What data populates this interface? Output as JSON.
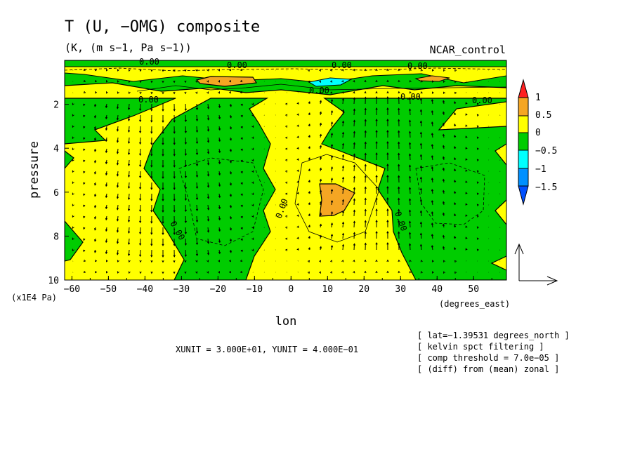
{
  "chart_data": {
    "type": "contour",
    "title": "T (U, −OMG) composite",
    "units": "(K, (m s−1, Pa s−1))",
    "experiment": "NCAR_control",
    "xlabel": "lon",
    "x_units": "(degrees_east)",
    "ylabel": "pressure",
    "y_units": "(x1E4 Pa)",
    "x_ticks": [
      "−60",
      "−50",
      "−40",
      "−30",
      "−20",
      "−10",
      "0",
      "10",
      "20",
      "30",
      "40",
      "50"
    ],
    "y_ticks": [
      "2",
      "4",
      "6",
      "8",
      "10"
    ],
    "xlim": [
      -62,
      59
    ],
    "ylim": [
      10,
      0
    ],
    "colorbar": {
      "levels": [
        "1",
        "0.5",
        "0",
        "−0.5",
        "−1",
        "−1.5"
      ],
      "colors": [
        "#ff2020",
        "#f5a623",
        "#ffff00",
        "#00cc00",
        "#00ffff",
        "#0090ff",
        "#0050ff"
      ]
    },
    "contour_labels": [
      "0.00"
    ],
    "vector_reference": "XUNIT = 3.000E+01, YUNIT = 4.000E−01",
    "notes": [
      "[ lat=−1.39531 degrees_north ]",
      "[ kelvin spct filtering ]",
      "[ comp threshold = 7.0e−05 ]",
      "[ (diff) from (mean) zonal ]"
    ],
    "regions": [
      {
        "name": "warm anomaly (>0.5)",
        "lon": [
          7,
          15
        ],
        "pressure": [
          5.8,
          7.2
        ],
        "value": 0.5
      },
      {
        "name": "warm anomaly upper",
        "lon": [
          -24,
          -10
        ],
        "pressure": [
          0.6,
          0.9
        ],
        "value": 0.5
      },
      {
        "name": "cold anomaly (<-1)",
        "lon": [
          5,
          15
        ],
        "pressure": [
          0.6,
          0.9
        ],
        "value": -1
      }
    ]
  }
}
